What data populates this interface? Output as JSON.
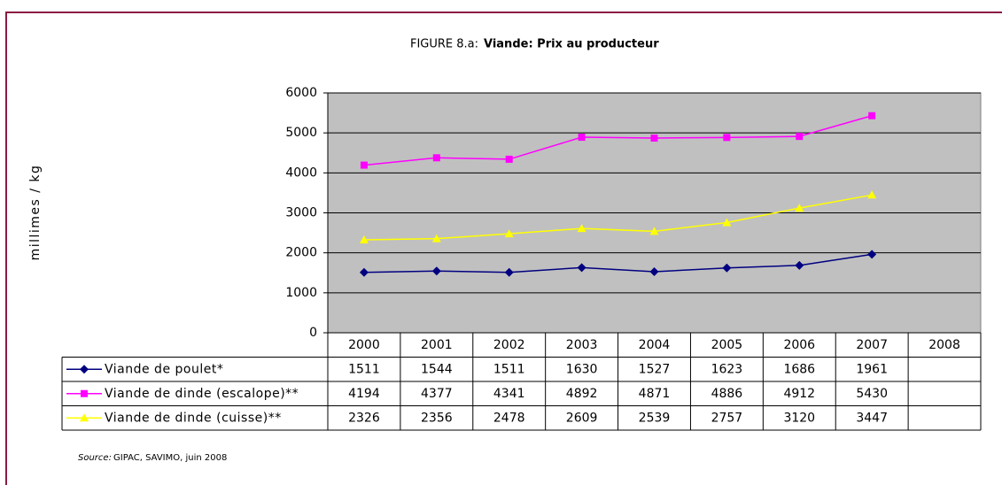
{
  "chart_data": {
    "type": "line",
    "title_label": "FIGURE 8.a:",
    "title": "Viande: Prix au producteur",
    "ylabel": "millimes / kg",
    "categories": [
      "2000",
      "2001",
      "2002",
      "2003",
      "2004",
      "2005",
      "2006",
      "2007",
      "2008"
    ],
    "series": [
      {
        "name": "Viande de poulet*",
        "color": "#000080",
        "marker": "diamond",
        "values": [
          1511,
          1544,
          1511,
          1630,
          1527,
          1623,
          1686,
          1961,
          null
        ]
      },
      {
        "name": "Viande de dinde (escalope)**",
        "color": "#FF00FF",
        "marker": "square",
        "values": [
          4194,
          4377,
          4341,
          4892,
          4871,
          4886,
          4912,
          5430,
          null
        ]
      },
      {
        "name": "Viande de dinde (cuisse)**",
        "color": "#FFFF00",
        "marker": "triangle",
        "values": [
          2326,
          2356,
          2478,
          2609,
          2539,
          2757,
          3120,
          3447,
          null
        ]
      }
    ],
    "ylim": [
      0,
      6000
    ],
    "yticks": [
      0,
      1000,
      2000,
      3000,
      4000,
      5000,
      6000
    ],
    "grid": true,
    "plot_background": "#C0C0C0",
    "source_label": "Source:",
    "source": "GIPAC, SAVIMO, juin 2008"
  }
}
